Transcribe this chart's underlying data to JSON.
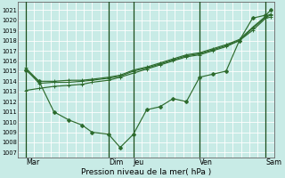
{
  "title": "Pression niveau de la mer( hPa )",
  "bg_color": "#c8ebe6",
  "grid_color": "#ffffff",
  "line_color": "#2d6b2d",
  "ylim": [
    1006.5,
    1021.8
  ],
  "yticks": [
    1007,
    1008,
    1009,
    1010,
    1011,
    1012,
    1013,
    1014,
    1015,
    1016,
    1017,
    1018,
    1019,
    1020,
    1021
  ],
  "xlim": [
    0.0,
    15.5
  ],
  "day_labels": [
    "Mar",
    "Dim",
    "Jeu",
    "Ven",
    "Sam"
  ],
  "day_positions": [
    0.5,
    5.5,
    7.0,
    11.0,
    15.0
  ],
  "vline_positions": [
    0.5,
    5.5,
    7.0,
    11.0,
    15.0
  ],
  "line_dip_x": [
    0.5,
    1.3,
    2.2,
    3.1,
    3.9,
    4.5,
    5.5,
    6.2,
    7.0,
    7.8,
    8.6,
    9.4,
    10.2,
    11.0,
    11.8,
    12.6,
    13.4,
    14.2,
    15.0,
    15.3
  ],
  "line_dip_y": [
    1015.1,
    1014.0,
    1011.0,
    1010.2,
    1009.7,
    1009.0,
    1008.8,
    1007.5,
    1008.8,
    1011.2,
    1011.5,
    1012.3,
    1012.0,
    1014.4,
    1014.7,
    1015.0,
    1018.0,
    1020.2,
    1020.5,
    1021.0
  ],
  "line_a_x": [
    0.5,
    1.3,
    2.2,
    3.1,
    3.9,
    4.5,
    5.5,
    6.2,
    7.0,
    7.8,
    8.6,
    9.4,
    10.2,
    11.0,
    11.8,
    12.6,
    13.4,
    14.2,
    15.0,
    15.3
  ],
  "line_a_y": [
    1015.2,
    1013.8,
    1013.9,
    1013.9,
    1014.0,
    1014.1,
    1014.3,
    1014.5,
    1015.0,
    1015.3,
    1015.7,
    1016.1,
    1016.5,
    1016.7,
    1017.1,
    1017.5,
    1018.0,
    1019.2,
    1020.3,
    1020.5
  ],
  "line_b_x": [
    0.5,
    1.3,
    2.2,
    3.1,
    3.9,
    4.5,
    5.5,
    6.2,
    7.0,
    7.8,
    8.6,
    9.4,
    10.2,
    11.0,
    11.8,
    12.6,
    13.4,
    14.2,
    15.0,
    15.3
  ],
  "line_b_y": [
    1013.1,
    1013.3,
    1013.5,
    1013.6,
    1013.7,
    1013.9,
    1014.1,
    1014.4,
    1014.8,
    1015.2,
    1015.6,
    1016.0,
    1016.4,
    1016.6,
    1017.0,
    1017.4,
    1018.0,
    1019.0,
    1020.2,
    1020.3
  ],
  "line_c_x": [
    0.5,
    1.3,
    2.2,
    3.1,
    3.9,
    4.5,
    5.5,
    6.2,
    7.0,
    7.8,
    8.6,
    9.4,
    10.2,
    11.0,
    11.8,
    12.6,
    13.4,
    14.2,
    15.0,
    15.3
  ],
  "line_c_y": [
    1015.3,
    1014.0,
    1014.0,
    1014.1,
    1014.1,
    1014.2,
    1014.4,
    1014.6,
    1015.1,
    1015.4,
    1015.8,
    1016.2,
    1016.6,
    1016.8,
    1017.2,
    1017.6,
    1018.1,
    1019.3,
    1020.4,
    1020.6
  ]
}
